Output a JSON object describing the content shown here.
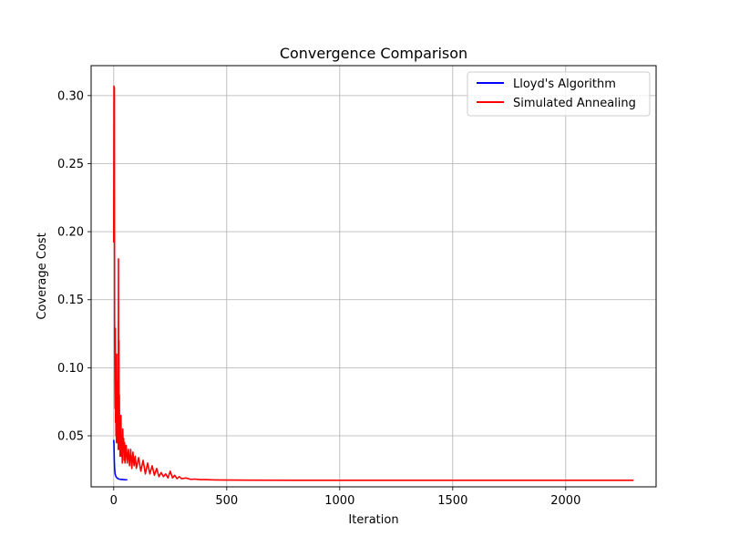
{
  "chart_data": {
    "type": "line",
    "title": "Convergence Comparison",
    "xlabel": "Iteration",
    "ylabel": "Coverage Cost",
    "xlim": [
      -100,
      2400
    ],
    "ylim": [
      0.0125,
      0.322
    ],
    "xticks": [
      0,
      500,
      1000,
      1500,
      2000
    ],
    "xtick_labels": [
      "0",
      "500",
      "1000",
      "1500",
      "2000"
    ],
    "yticks": [
      0.05,
      0.1,
      0.15,
      0.2,
      0.25,
      0.3
    ],
    "ytick_labels": [
      "0.05",
      "0.10",
      "0.15",
      "0.20",
      "0.25",
      "0.30"
    ],
    "grid": true,
    "legend_position": "upper right",
    "series": [
      {
        "name": "Lloyd's Algorithm",
        "color": "#0000ff",
        "x": [
          0,
          1,
          2,
          3,
          4,
          5,
          6,
          8,
          10,
          12,
          15,
          18,
          22,
          26,
          30,
          35,
          40,
          45,
          50,
          55,
          60
        ],
        "y": [
          0.047,
          0.044,
          0.036,
          0.03,
          0.026,
          0.024,
          0.022,
          0.021,
          0.02,
          0.0195,
          0.019,
          0.0186,
          0.0183,
          0.0181,
          0.018,
          0.0179,
          0.0178,
          0.0178,
          0.0177,
          0.0177,
          0.0177
        ]
      },
      {
        "name": "Simulated Annealing",
        "color": "#ff0000",
        "x": [
          0,
          1,
          2,
          3,
          4,
          5,
          6,
          7,
          8,
          9,
          10,
          11,
          12,
          13,
          14,
          15,
          16,
          17,
          18,
          19,
          20,
          21,
          22,
          23,
          24,
          25,
          26,
          27,
          28,
          29,
          30,
          32,
          34,
          36,
          38,
          40,
          42,
          44,
          46,
          48,
          50,
          55,
          60,
          65,
          70,
          75,
          80,
          85,
          90,
          95,
          100,
          110,
          120,
          130,
          140,
          150,
          160,
          170,
          180,
          190,
          200,
          210,
          220,
          230,
          240,
          250,
          260,
          270,
          280,
          290,
          300,
          320,
          340,
          360,
          380,
          400,
          450,
          500,
          600,
          800,
          1000,
          1500,
          2000,
          2300
        ],
        "y": [
          0.192,
          0.307,
          0.2,
          0.306,
          0.12,
          0.09,
          0.07,
          0.129,
          0.06,
          0.1,
          0.05,
          0.085,
          0.045,
          0.11,
          0.06,
          0.075,
          0.045,
          0.09,
          0.05,
          0.065,
          0.04,
          0.18,
          0.06,
          0.12,
          0.05,
          0.08,
          0.04,
          0.06,
          0.035,
          0.055,
          0.045,
          0.065,
          0.035,
          0.05,
          0.03,
          0.055,
          0.04,
          0.048,
          0.032,
          0.045,
          0.03,
          0.043,
          0.03,
          0.04,
          0.028,
          0.04,
          0.026,
          0.038,
          0.028,
          0.035,
          0.026,
          0.034,
          0.024,
          0.032,
          0.022,
          0.03,
          0.022,
          0.028,
          0.021,
          0.026,
          0.02,
          0.023,
          0.02,
          0.022,
          0.019,
          0.024,
          0.019,
          0.021,
          0.0185,
          0.02,
          0.0185,
          0.019,
          0.018,
          0.0182,
          0.0178,
          0.0178,
          0.0176,
          0.0175,
          0.0174,
          0.0173,
          0.0173,
          0.0173,
          0.0173,
          0.0173
        ]
      }
    ]
  }
}
